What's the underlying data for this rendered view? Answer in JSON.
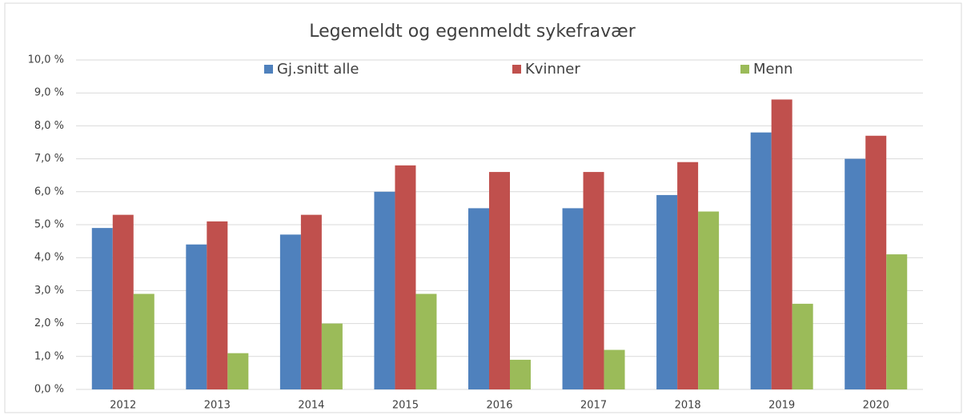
{
  "chart_data": {
    "type": "bar",
    "title": "Legemeldt og egenmeldt sykefravær",
    "categories": [
      "2012",
      "2013",
      "2014",
      "2015",
      "2016",
      "2017",
      "2018",
      "2019",
      "2020"
    ],
    "series": [
      {
        "name": "Gj.snitt alle",
        "color": "#4f81bd",
        "values": [
          4.9,
          4.4,
          4.7,
          6.0,
          5.5,
          5.5,
          5.9,
          7.8,
          7.0
        ]
      },
      {
        "name": "Kvinner",
        "color": "#c0504d",
        "values": [
          5.3,
          5.1,
          5.3,
          6.8,
          6.6,
          6.6,
          6.9,
          8.8,
          7.7
        ]
      },
      {
        "name": "Menn",
        "color": "#9bbb59",
        "values": [
          2.9,
          1.1,
          2.0,
          2.9,
          0.9,
          1.2,
          5.4,
          2.6,
          4.1
        ]
      }
    ],
    "ylim": [
      0,
      10
    ],
    "yticks": [
      {
        "value": 0,
        "label": "0,0 %"
      },
      {
        "value": 1,
        "label": "1,0 %"
      },
      {
        "value": 2,
        "label": "2,0 %"
      },
      {
        "value": 3,
        "label": "3,0 %"
      },
      {
        "value": 4,
        "label": "4,0 %"
      },
      {
        "value": 5,
        "label": "5,0 %"
      },
      {
        "value": 6,
        "label": "6,0 %"
      },
      {
        "value": 7,
        "label": "7,0 %"
      },
      {
        "value": 8,
        "label": "8,0 %"
      },
      {
        "value": 9,
        "label": "9,0 %"
      },
      {
        "value": 10,
        "label": "10,0 %"
      }
    ],
    "grid": true,
    "legend": "top"
  }
}
